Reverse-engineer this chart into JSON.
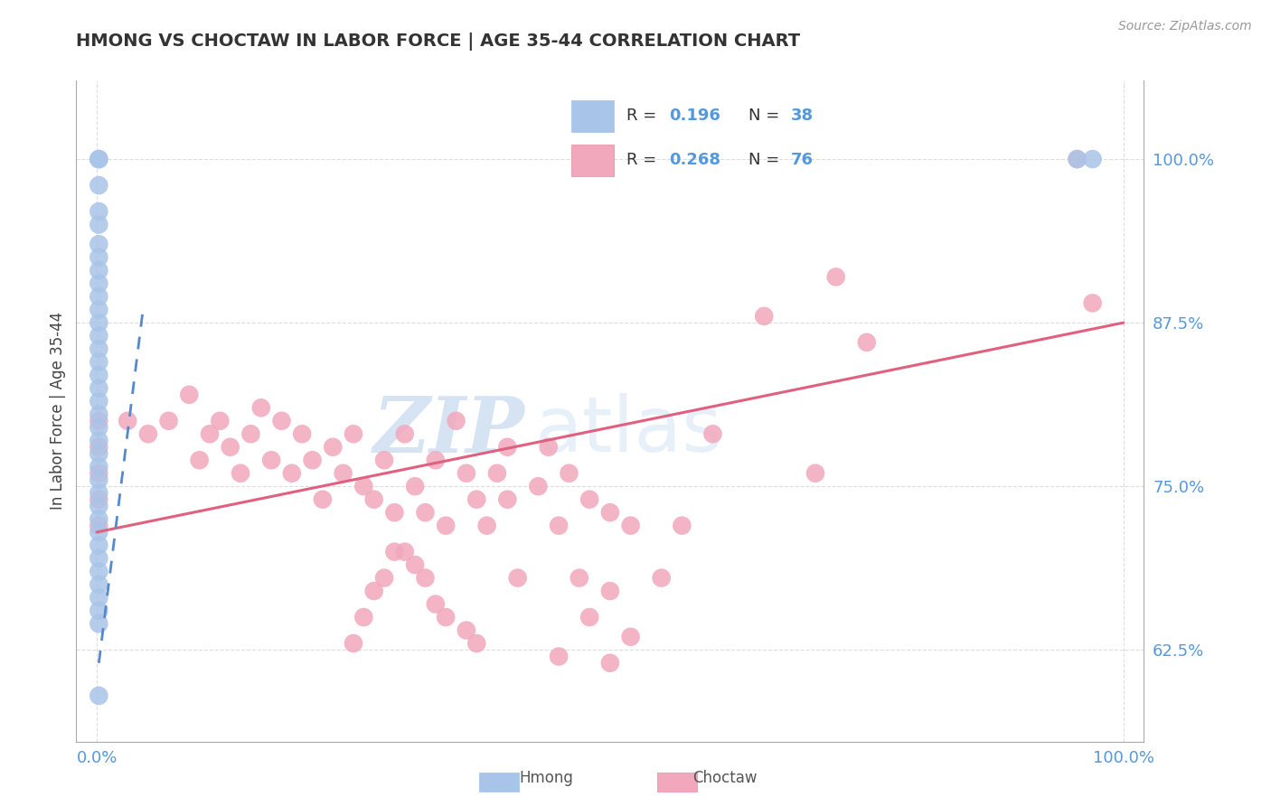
{
  "title": "HMONG VS CHOCTAW IN LABOR FORCE | AGE 35-44 CORRELATION CHART",
  "source_text": "Source: ZipAtlas.com",
  "ylabel": "In Labor Force | Age 35-44",
  "xlim": [
    -0.02,
    1.02
  ],
  "ylim": [
    0.555,
    1.06
  ],
  "ytick_vals": [
    0.625,
    0.75,
    0.875,
    1.0
  ],
  "ytick_labels": [
    "62.5%",
    "75.0%",
    "87.5%",
    "100.0%"
  ],
  "xtick_vals": [
    0.0,
    1.0
  ],
  "xtick_labels": [
    "0.0%",
    "100.0%"
  ],
  "legend_r1": "R =",
  "legend_v1": "0.196",
  "legend_n1_label": "N =",
  "legend_n1": "38",
  "legend_r2": "R =",
  "legend_v2": "0.268",
  "legend_n2_label": "N =",
  "legend_n2": "76",
  "hmong_color": "#a8c4e8",
  "choctaw_color": "#f2a8bc",
  "hmong_trend_color": "#5588cc",
  "choctaw_trend_color": "#e06080",
  "tick_color": "#5599dd",
  "background_color": "#ffffff",
  "grid_color": "#dddddd",
  "watermark_zip": "ZIP",
  "watermark_atlas": "atlas",
  "choctaw_trend_x0": 0.0,
  "choctaw_trend_x1": 1.0,
  "choctaw_trend_y0": 0.715,
  "choctaw_trend_y1": 0.875,
  "hmong_trend_x0": 0.002,
  "hmong_trend_x1": 0.045,
  "hmong_trend_y0": 0.615,
  "hmong_trend_y1": 0.885,
  "hmong_scatter_x": [
    0.002,
    0.002,
    0.002,
    0.002,
    0.002,
    0.002,
    0.002,
    0.002,
    0.002,
    0.002,
    0.002,
    0.002,
    0.002,
    0.002,
    0.002,
    0.002,
    0.002,
    0.002,
    0.002,
    0.002,
    0.002,
    0.002,
    0.002,
    0.002,
    0.002,
    0.002,
    0.002,
    0.002,
    0.002,
    0.002,
    0.002,
    0.002,
    0.002,
    0.002,
    0.002,
    0.002,
    0.955,
    0.97
  ],
  "hmong_scatter_y": [
    1.0,
    1.0,
    0.98,
    0.96,
    0.95,
    0.935,
    0.925,
    0.915,
    0.905,
    0.895,
    0.885,
    0.875,
    0.865,
    0.855,
    0.845,
    0.835,
    0.825,
    0.815,
    0.805,
    0.795,
    0.785,
    0.775,
    0.765,
    0.755,
    0.745,
    0.735,
    0.725,
    0.715,
    0.705,
    0.695,
    0.685,
    0.675,
    0.665,
    0.655,
    0.645,
    0.59,
    1.0,
    1.0
  ],
  "choctaw_scatter_x": [
    0.002,
    0.002,
    0.002,
    0.002,
    0.002,
    0.03,
    0.05,
    0.07,
    0.09,
    0.1,
    0.11,
    0.12,
    0.13,
    0.14,
    0.15,
    0.16,
    0.17,
    0.18,
    0.19,
    0.2,
    0.21,
    0.22,
    0.23,
    0.24,
    0.25,
    0.26,
    0.27,
    0.28,
    0.29,
    0.3,
    0.31,
    0.32,
    0.33,
    0.34,
    0.35,
    0.36,
    0.37,
    0.38,
    0.39,
    0.4,
    0.4,
    0.41,
    0.43,
    0.44,
    0.45,
    0.46,
    0.47,
    0.48,
    0.5,
    0.5,
    0.52,
    0.3,
    0.31,
    0.32,
    0.33,
    0.34,
    0.36,
    0.37,
    0.29,
    0.28,
    0.27,
    0.26,
    0.25,
    0.6,
    0.65,
    0.7,
    0.72,
    0.75,
    0.45,
    0.48,
    0.5,
    0.52,
    0.55,
    0.57,
    0.955,
    0.97
  ],
  "choctaw_scatter_y": [
    0.8,
    0.78,
    0.76,
    0.74,
    0.72,
    0.8,
    0.79,
    0.8,
    0.82,
    0.77,
    0.79,
    0.8,
    0.78,
    0.76,
    0.79,
    0.81,
    0.77,
    0.8,
    0.76,
    0.79,
    0.77,
    0.74,
    0.78,
    0.76,
    0.79,
    0.75,
    0.74,
    0.77,
    0.73,
    0.79,
    0.75,
    0.73,
    0.77,
    0.72,
    0.8,
    0.76,
    0.74,
    0.72,
    0.76,
    0.78,
    0.74,
    0.68,
    0.75,
    0.78,
    0.72,
    0.76,
    0.68,
    0.74,
    0.73,
    0.67,
    0.72,
    0.7,
    0.69,
    0.68,
    0.66,
    0.65,
    0.64,
    0.63,
    0.7,
    0.68,
    0.67,
    0.65,
    0.63,
    0.79,
    0.88,
    0.76,
    0.91,
    0.86,
    0.62,
    0.65,
    0.615,
    0.635,
    0.68,
    0.72,
    1.0,
    0.89
  ]
}
